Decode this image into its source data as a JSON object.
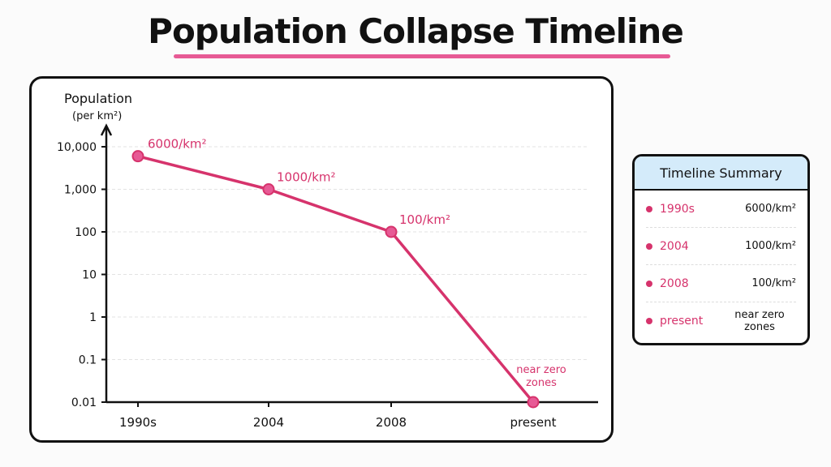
{
  "page": {
    "title": "Population Collapse Timeline"
  },
  "chart_data": {
    "type": "line",
    "title": "Population Collapse Timeline",
    "ylabel": "Population",
    "ylabel_unit": "(per km²)",
    "xlabel": "",
    "y_scale": "log",
    "ylim": [
      0.01,
      10000
    ],
    "y_ticks": [
      "10,000",
      "1,000",
      "100",
      "10",
      "1",
      "0.1",
      "0.01"
    ],
    "categories": [
      "1990s",
      "2004",
      "2008",
      "present"
    ],
    "series": [
      {
        "values": [
          6000,
          1000,
          100,
          0.01
        ],
        "data_labels": [
          "6000/km²",
          "1000/km²",
          "100/km²",
          "near zero zones"
        ],
        "color": "#d6336c"
      }
    ],
    "grid": true
  },
  "summary": {
    "title": "Timeline Summary",
    "rows": [
      {
        "label": "1990s",
        "value": "6000/km²"
      },
      {
        "label": "2004",
        "value": "1000/km²"
      },
      {
        "label": "2008",
        "value": "100/km²"
      },
      {
        "label": "present",
        "value": "near zero zones"
      }
    ]
  },
  "colors": {
    "accent": "#e75a95",
    "series": "#d6336c",
    "header": "#d4ebfa"
  }
}
